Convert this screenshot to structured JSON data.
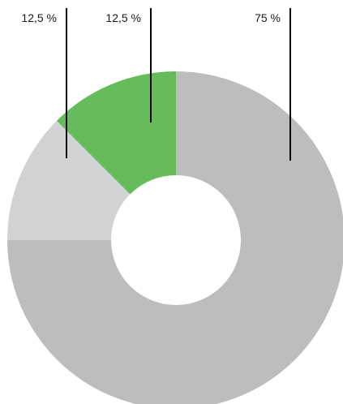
{
  "chart_data": {
    "type": "pie",
    "variant": "donut",
    "title": "",
    "slices": [
      {
        "label": "75 %",
        "value": 75,
        "color": "#bcbdbf"
      },
      {
        "label": "12,5 %",
        "value": 12.5,
        "color": "#d1d2d4"
      },
      {
        "label": "12,5 %",
        "value": 12.5,
        "color": "#66bb5a"
      }
    ],
    "legend": "none",
    "grid": false
  }
}
